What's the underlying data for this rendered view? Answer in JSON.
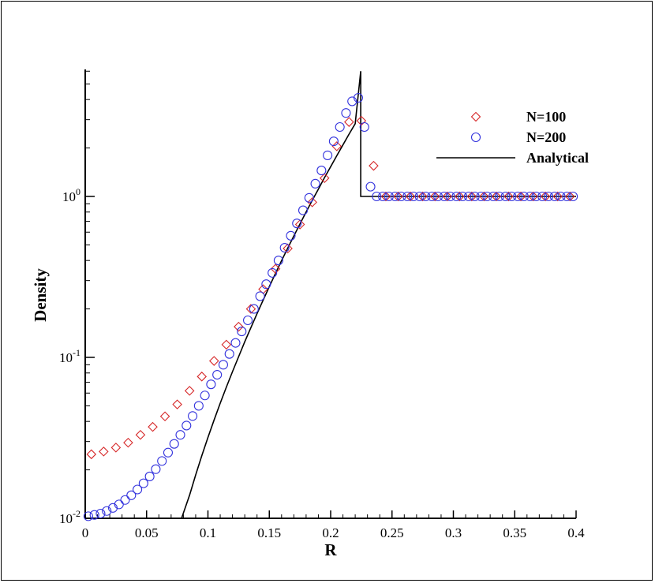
{
  "chart_data": {
    "type": "scatter",
    "title": "",
    "xlabel": "R",
    "ylabel": "Density",
    "xlim": [
      0,
      0.4
    ],
    "ylim": [
      0.01,
      6.2
    ],
    "yscale": "log",
    "grid": false,
    "legend_position": "top-right",
    "x_ticks": [
      "0",
      "0.05",
      "0.1",
      "0.15",
      "0.2",
      "0.25",
      "0.3",
      "0.35",
      "0.4"
    ],
    "y_ticks": [
      {
        "base": "10",
        "exp": "-2",
        "value": 0.01
      },
      {
        "base": "10",
        "exp": "-1",
        "value": 0.1
      },
      {
        "base": "10",
        "exp": "0",
        "value": 1
      }
    ],
    "series": [
      {
        "name": "N=100",
        "marker": "diamond",
        "color": "#d62728",
        "x": [
          0.005,
          0.015,
          0.025,
          0.035,
          0.045,
          0.055,
          0.065,
          0.075,
          0.085,
          0.095,
          0.105,
          0.115,
          0.125,
          0.135,
          0.145,
          0.155,
          0.165,
          0.175,
          0.185,
          0.195,
          0.205,
          0.215,
          0.225,
          0.235,
          0.245,
          0.255,
          0.265,
          0.275,
          0.285,
          0.295,
          0.305,
          0.315,
          0.325,
          0.335,
          0.345,
          0.355,
          0.365,
          0.375,
          0.385,
          0.395
        ],
        "y": [
          0.025,
          0.026,
          0.0275,
          0.0295,
          0.033,
          0.037,
          0.043,
          0.051,
          0.062,
          0.076,
          0.095,
          0.12,
          0.155,
          0.2,
          0.265,
          0.355,
          0.475,
          0.67,
          0.92,
          1.3,
          2.05,
          2.9,
          2.95,
          1.55,
          1.0,
          1.0,
          1.0,
          1.0,
          1.0,
          1.0,
          1.0,
          1.0,
          1.0,
          1.0,
          1.0,
          1.0,
          1.0,
          1.0,
          1.0,
          1.0
        ]
      },
      {
        "name": "N=200",
        "marker": "circle",
        "color": "#3333dd",
        "x": [
          0.0025,
          0.0075,
          0.0125,
          0.0175,
          0.0225,
          0.0275,
          0.0325,
          0.0375,
          0.0425,
          0.0475,
          0.0525,
          0.0575,
          0.0625,
          0.0675,
          0.0725,
          0.0775,
          0.0825,
          0.0875,
          0.0925,
          0.0975,
          0.1025,
          0.1075,
          0.1125,
          0.1175,
          0.1225,
          0.1275,
          0.1325,
          0.1375,
          0.1425,
          0.1475,
          0.1525,
          0.1575,
          0.1625,
          0.1675,
          0.1725,
          0.1775,
          0.1825,
          0.1875,
          0.1925,
          0.1975,
          0.2025,
          0.2075,
          0.2125,
          0.2175,
          0.2225,
          0.2275,
          0.2325,
          0.2375,
          0.2425,
          0.2475,
          0.2525,
          0.2575,
          0.2625,
          0.2675,
          0.2725,
          0.2775,
          0.2825,
          0.2875,
          0.2925,
          0.2975,
          0.3025,
          0.3075,
          0.3125,
          0.3175,
          0.3225,
          0.3275,
          0.3325,
          0.3375,
          0.3425,
          0.3475,
          0.3525,
          0.3575,
          0.3625,
          0.3675,
          0.3725,
          0.3775,
          0.3825,
          0.3875,
          0.3925,
          0.3975
        ],
        "y": [
          0.0103,
          0.0105,
          0.0107,
          0.0111,
          0.0116,
          0.0122,
          0.013,
          0.0139,
          0.0151,
          0.0165,
          0.0182,
          0.0202,
          0.0227,
          0.0256,
          0.029,
          0.033,
          0.0377,
          0.0432,
          0.05,
          0.058,
          0.068,
          0.078,
          0.09,
          0.105,
          0.123,
          0.145,
          0.17,
          0.2,
          0.24,
          0.285,
          0.335,
          0.4,
          0.48,
          0.57,
          0.68,
          0.82,
          0.98,
          1.2,
          1.45,
          1.8,
          2.2,
          2.7,
          3.3,
          3.9,
          4.1,
          2.7,
          1.15,
          1.0,
          1.0,
          1.0,
          1.0,
          1.0,
          1.0,
          1.0,
          1.0,
          1.0,
          1.0,
          1.0,
          1.0,
          1.0,
          1.0,
          1.0,
          1.0,
          1.0,
          1.0,
          1.0,
          1.0,
          1.0,
          1.0,
          1.0,
          1.0,
          1.0,
          1.0,
          1.0,
          1.0,
          1.0,
          1.0,
          1.0,
          1.0,
          1.0
        ]
      },
      {
        "name": "Analytical",
        "marker": "line",
        "color": "#000000",
        "x": [
          0.0785,
          0.085,
          0.09,
          0.095,
          0.1,
          0.105,
          0.11,
          0.115,
          0.12,
          0.125,
          0.13,
          0.135,
          0.14,
          0.145,
          0.15,
          0.155,
          0.16,
          0.165,
          0.17,
          0.175,
          0.18,
          0.185,
          0.19,
          0.195,
          0.2,
          0.205,
          0.21,
          0.215,
          0.22,
          0.2245,
          0.2245,
          0.226,
          0.4
        ],
        "y": [
          0.01,
          0.0139,
          0.0186,
          0.0245,
          0.0318,
          0.0408,
          0.0519,
          0.0653,
          0.0815,
          0.101,
          0.125,
          0.153,
          0.187,
          0.227,
          0.275,
          0.332,
          0.399,
          0.477,
          0.568,
          0.675,
          0.8,
          0.945,
          1.11,
          1.31,
          1.53,
          1.79,
          2.09,
          2.44,
          2.83,
          6.0,
          1.0,
          1.0,
          1.0
        ]
      }
    ]
  }
}
